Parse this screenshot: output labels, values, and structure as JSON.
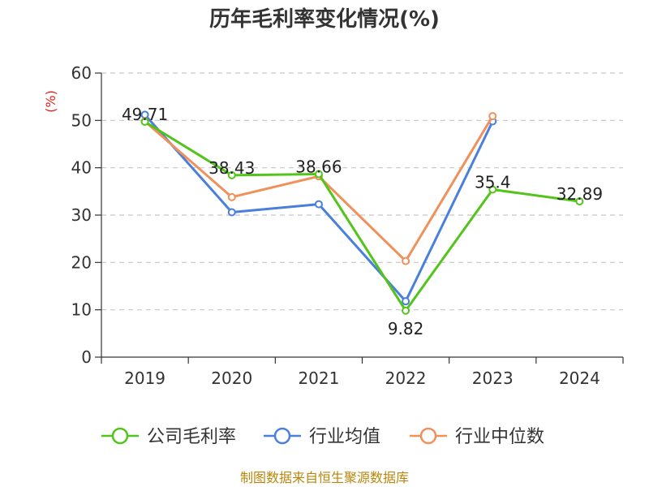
{
  "chart_data": {
    "type": "line",
    "title": "历年毛利率变化情况(%)",
    "ylabel": "(%)",
    "ylim": [
      0,
      60
    ],
    "yticks": [
      0,
      10,
      20,
      30,
      40,
      50,
      60
    ],
    "categories": [
      "2019",
      "2020",
      "2021",
      "2022",
      "2023",
      "2024"
    ],
    "grid": true,
    "legend_position": "bottom",
    "series": [
      {
        "name": "公司毛利率",
        "color": "#52c41a",
        "values": [
          49.71,
          38.43,
          38.66,
          9.82,
          35.4,
          32.89
        ],
        "labels": [
          "49.71",
          "38.43",
          "38.66",
          "9.82",
          "35.4",
          "32.89"
        ]
      },
      {
        "name": "行业均值",
        "color": "#4a7fdc",
        "values": [
          51.2,
          30.6,
          32.3,
          11.8,
          49.8,
          null
        ]
      },
      {
        "name": "行业中位数",
        "color": "#f0905a",
        "values": [
          49.8,
          33.8,
          38.2,
          20.3,
          50.9,
          null
        ]
      }
    ],
    "source": "制图数据来自恒生聚源数据库"
  }
}
